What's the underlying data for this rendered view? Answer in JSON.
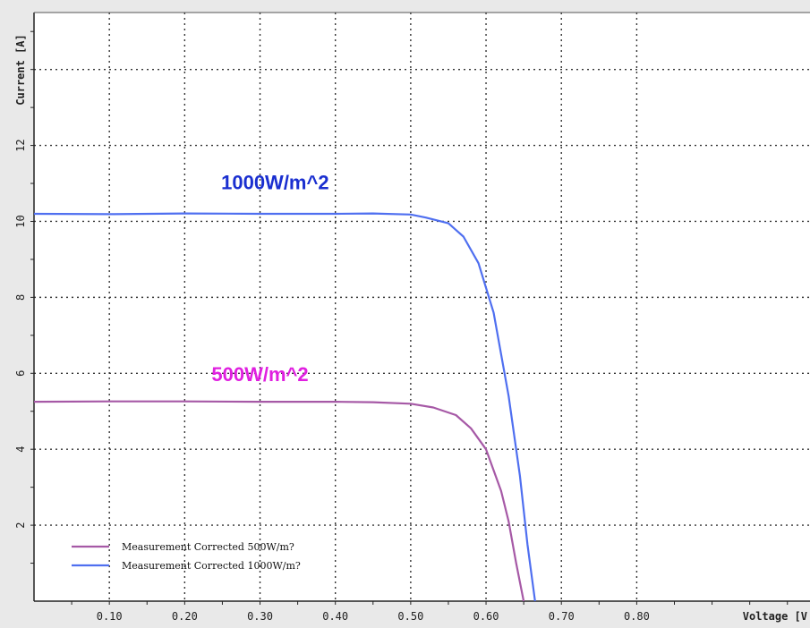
{
  "chart_data": {
    "type": "line",
    "xlabel": "Voltage [V",
    "ylabel": "Current [A]",
    "xlim": [
      0.0,
      1.03
    ],
    "ylim": [
      0,
      15.5
    ],
    "x_ticks": [
      0.1,
      0.2,
      0.3,
      0.4,
      0.5,
      0.6,
      0.7,
      0.8
    ],
    "x_tick_labels": [
      "0.10",
      "0.20",
      "0.30",
      "0.40",
      "0.50",
      "0.60",
      "0.70",
      "0.80"
    ],
    "y_ticks": [
      2,
      4,
      6,
      8,
      10,
      12
    ],
    "y_tick_labels": [
      "2",
      "4",
      "6",
      "8",
      "10",
      "12"
    ],
    "grid": true,
    "legend_position": "bottom-left",
    "series": [
      {
        "name": "Measurement Corrected 500W/m?",
        "color": "#a659a6",
        "x": [
          0.0,
          0.1,
          0.2,
          0.3,
          0.4,
          0.45,
          0.5,
          0.53,
          0.56,
          0.58,
          0.6,
          0.62,
          0.63,
          0.64,
          0.65
        ],
        "y": [
          5.25,
          5.26,
          5.26,
          5.25,
          5.25,
          5.24,
          5.2,
          5.1,
          4.9,
          4.55,
          4.0,
          2.9,
          2.1,
          1.0,
          0.0
        ]
      },
      {
        "name": "Measurement Corrected 1000W/m?",
        "color": "#4f6ff0",
        "x": [
          0.0,
          0.1,
          0.2,
          0.3,
          0.4,
          0.45,
          0.5,
          0.52,
          0.55,
          0.57,
          0.59,
          0.61,
          0.63,
          0.645,
          0.655,
          0.665
        ],
        "y": [
          10.2,
          10.19,
          10.21,
          10.2,
          10.2,
          10.21,
          10.18,
          10.1,
          9.95,
          9.6,
          8.9,
          7.6,
          5.4,
          3.3,
          1.5,
          0.0
        ]
      }
    ],
    "annotations": [
      {
        "text": "1000W/m^2",
        "x": 0.32,
        "y": 10.85,
        "color": "#1a2fd0"
      },
      {
        "text": "500W/m^2",
        "x": 0.3,
        "y": 5.8,
        "color": "#e020e0"
      }
    ]
  }
}
